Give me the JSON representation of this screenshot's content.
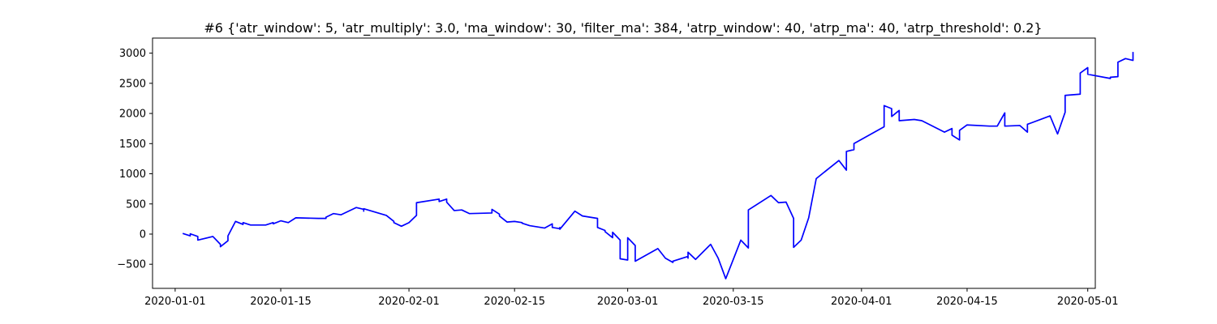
{
  "chart_data": {
    "type": "line",
    "title": "#6 {'atr_window': 5, 'atr_multiply': 3.0, 'ma_window': 30, 'filter_ma': 384, 'atrp_window': 40, 'atrp_ma': 40, 'atrp_threshold': 0.2}",
    "xlabel": "",
    "ylabel": "",
    "x_axis": "date",
    "xlim": [
      "2019-12-29",
      "2020-05-02"
    ],
    "ylim": [
      -900,
      3250
    ],
    "x_ticks": [
      "2020-01-01",
      "2020-01-15",
      "2020-02-01",
      "2020-02-15",
      "2020-03-01",
      "2020-03-15",
      "2020-04-01",
      "2020-04-15",
      "2020-05-01"
    ],
    "y_ticks": [
      -500,
      0,
      500,
      1000,
      1500,
      2000,
      2500,
      3000
    ],
    "grid": false,
    "colors": {
      "line": "#0000ff",
      "axes": "#000000",
      "background": "#ffffff"
    },
    "series": [
      {
        "points": [
          [
            "2020-01-02",
            10
          ],
          [
            "2020-01-03",
            -30
          ],
          [
            "2020-01-03",
            5
          ],
          [
            "2020-01-04",
            -40
          ],
          [
            "2020-01-04",
            -100
          ],
          [
            "2020-01-06",
            -40
          ],
          [
            "2020-01-07",
            -170
          ],
          [
            "2020-01-07",
            -210
          ],
          [
            "2020-01-08",
            -110
          ],
          [
            "2020-01-08",
            -30
          ],
          [
            "2020-01-09",
            210
          ],
          [
            "2020-01-10",
            160
          ],
          [
            "2020-01-10",
            190
          ],
          [
            "2020-01-11",
            150
          ],
          [
            "2020-01-13",
            150
          ],
          [
            "2020-01-14",
            190
          ],
          [
            "2020-01-14",
            170
          ],
          [
            "2020-01-15",
            220
          ],
          [
            "2020-01-16",
            190
          ],
          [
            "2020-01-17",
            270
          ],
          [
            "2020-01-20",
            260
          ],
          [
            "2020-01-21",
            260
          ],
          [
            "2020-01-21",
            280
          ],
          [
            "2020-01-22",
            340
          ],
          [
            "2020-01-23",
            320
          ],
          [
            "2020-01-25",
            440
          ],
          [
            "2020-01-26",
            410
          ],
          [
            "2020-01-26",
            380
          ],
          [
            "2020-01-26",
            420
          ],
          [
            "2020-01-29",
            310
          ],
          [
            "2020-01-30",
            210
          ],
          [
            "2020-01-30",
            190
          ],
          [
            "2020-01-31",
            130
          ],
          [
            "2020-02-01",
            190
          ],
          [
            "2020-02-02",
            310
          ],
          [
            "2020-02-02",
            520
          ],
          [
            "2020-02-05",
            580
          ],
          [
            "2020-02-05",
            540
          ],
          [
            "2020-02-06",
            580
          ],
          [
            "2020-02-06",
            530
          ],
          [
            "2020-02-07",
            390
          ],
          [
            "2020-02-08",
            400
          ],
          [
            "2020-02-09",
            340
          ],
          [
            "2020-02-12",
            350
          ],
          [
            "2020-02-12",
            410
          ],
          [
            "2020-02-13",
            330
          ],
          [
            "2020-02-13",
            300
          ],
          [
            "2020-02-14",
            200
          ],
          [
            "2020-02-15",
            210
          ],
          [
            "2020-02-16",
            190
          ],
          [
            "2020-02-16",
            180
          ],
          [
            "2020-02-17",
            140
          ],
          [
            "2020-02-19",
            100
          ],
          [
            "2020-02-20",
            170
          ],
          [
            "2020-02-20",
            110
          ],
          [
            "2020-02-21",
            90
          ],
          [
            "2020-02-21",
            110
          ],
          [
            "2020-02-21",
            80
          ],
          [
            "2020-02-23",
            380
          ],
          [
            "2020-02-24",
            300
          ],
          [
            "2020-02-26",
            260
          ],
          [
            "2020-02-26",
            110
          ],
          [
            "2020-02-27",
            60
          ],
          [
            "2020-02-27",
            40
          ],
          [
            "2020-02-28",
            -60
          ],
          [
            "2020-02-28",
            30
          ],
          [
            "2020-02-29",
            -100
          ],
          [
            "2020-02-29",
            -410
          ],
          [
            "2020-03-01",
            -430
          ],
          [
            "2020-03-01",
            -60
          ],
          [
            "2020-03-02",
            -190
          ],
          [
            "2020-03-02",
            -450
          ],
          [
            "2020-03-05",
            -240
          ],
          [
            "2020-03-06",
            -400
          ],
          [
            "2020-03-07",
            -470
          ],
          [
            "2020-03-07",
            -450
          ],
          [
            "2020-03-09",
            -370
          ],
          [
            "2020-03-09",
            -400
          ],
          [
            "2020-03-09",
            -300
          ],
          [
            "2020-03-10",
            -420
          ],
          [
            "2020-03-12",
            -170
          ],
          [
            "2020-03-13",
            -400
          ],
          [
            "2020-03-14",
            -740
          ],
          [
            "2020-03-15",
            -420
          ],
          [
            "2020-03-16",
            -100
          ],
          [
            "2020-03-17",
            -230
          ],
          [
            "2020-03-17",
            400
          ],
          [
            "2020-03-20",
            640
          ],
          [
            "2020-03-21",
            520
          ],
          [
            "2020-03-22",
            530
          ],
          [
            "2020-03-23",
            260
          ],
          [
            "2020-03-23",
            -220
          ],
          [
            "2020-03-24",
            -100
          ],
          [
            "2020-03-25",
            270
          ],
          [
            "2020-03-26",
            920
          ],
          [
            "2020-03-29",
            1220
          ],
          [
            "2020-03-30",
            1060
          ],
          [
            "2020-03-30",
            1370
          ],
          [
            "2020-03-31",
            1400
          ],
          [
            "2020-03-31",
            1500
          ],
          [
            "2020-04-04",
            1780
          ],
          [
            "2020-04-04",
            2130
          ],
          [
            "2020-04-05",
            2080
          ],
          [
            "2020-04-05",
            1950
          ],
          [
            "2020-04-06",
            2050
          ],
          [
            "2020-04-06",
            1880
          ],
          [
            "2020-04-08",
            1900
          ],
          [
            "2020-04-09",
            1880
          ],
          [
            "2020-04-12",
            1690
          ],
          [
            "2020-04-13",
            1750
          ],
          [
            "2020-04-13",
            1640
          ],
          [
            "2020-04-14",
            1560
          ],
          [
            "2020-04-14",
            1720
          ],
          [
            "2020-04-15",
            1810
          ],
          [
            "2020-04-18",
            1790
          ],
          [
            "2020-04-19",
            1790
          ],
          [
            "2020-04-20",
            2010
          ],
          [
            "2020-04-20",
            1790
          ],
          [
            "2020-04-22",
            1800
          ],
          [
            "2020-04-23",
            1690
          ],
          [
            "2020-04-23",
            1820
          ],
          [
            "2020-04-26",
            1960
          ],
          [
            "2020-04-27",
            1660
          ],
          [
            "2020-04-28",
            2020
          ],
          [
            "2020-04-28",
            2300
          ],
          [
            "2020-04-30",
            2320
          ],
          [
            "2020-04-30",
            2670
          ],
          [
            "2020-05-01",
            2760
          ],
          [
            "2020-05-01",
            2650
          ],
          [
            "2020-05-04",
            2580
          ],
          [
            "2020-05-04",
            2600
          ],
          [
            "2020-05-05",
            2610
          ],
          [
            "2020-05-05",
            2850
          ],
          [
            "2020-05-06",
            2910
          ],
          [
            "2020-05-07",
            2880
          ],
          [
            "2020-05-07",
            3020
          ]
        ]
      }
    ]
  }
}
